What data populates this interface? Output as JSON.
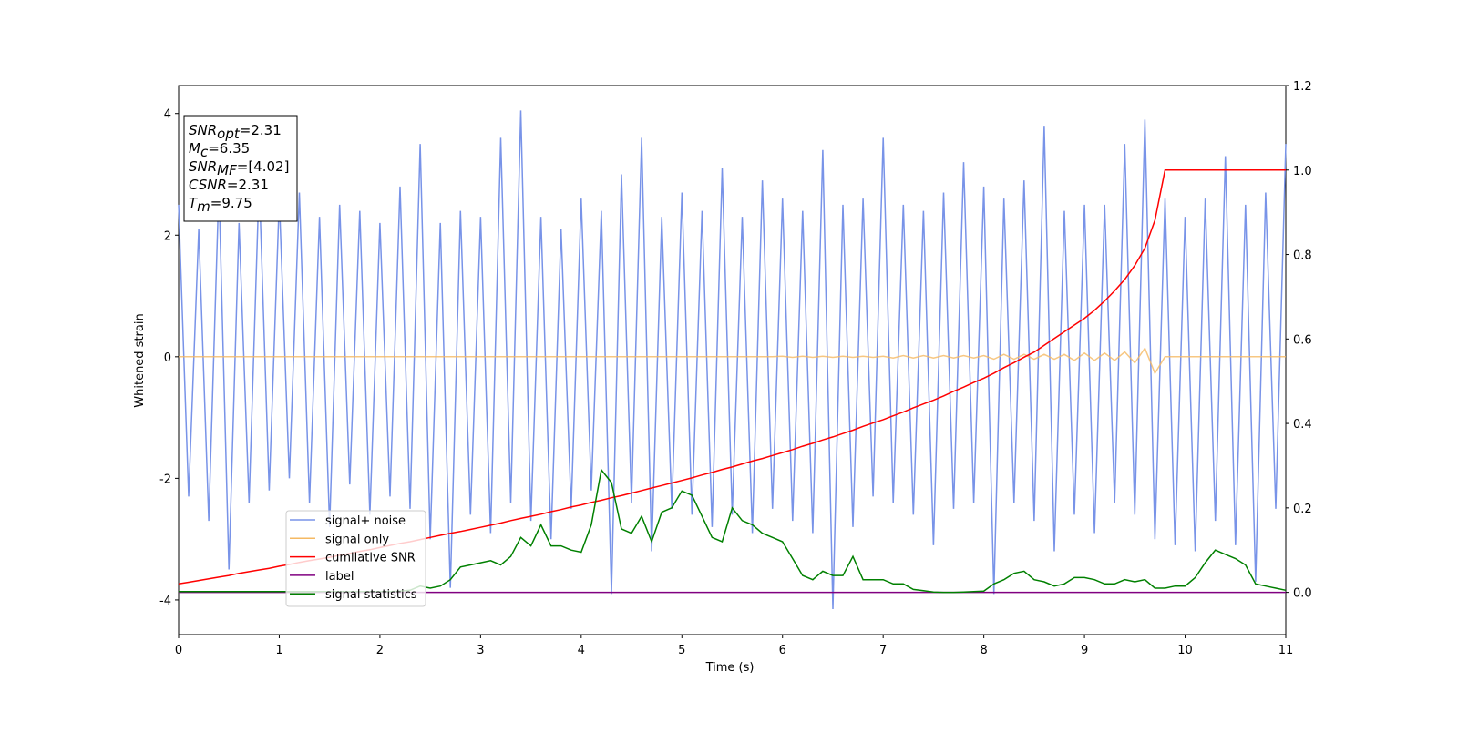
{
  "chart_data": {
    "type": "line",
    "xlabel": "Time (s)",
    "ylabel": "Whitened strain",
    "xlim": [
      0,
      11
    ],
    "xticks": [
      0,
      1,
      2,
      3,
      4,
      5,
      6,
      7,
      8,
      9,
      10,
      11
    ],
    "ylim": [
      -4.57,
      4.46
    ],
    "yticks": [
      -4,
      -2,
      0,
      2,
      4
    ],
    "y2lim": [
      -0.1,
      1.2
    ],
    "y2ticks": [
      {
        "value": 0,
        "label": "0.0"
      },
      0.2,
      0.4,
      0.6,
      0.8,
      {
        "value": 1,
        "label": "1.0"
      },
      1.2
    ],
    "annotation_lines": [
      {
        "symbol": "SNR",
        "sub": "opt",
        "text": "=2.31"
      },
      {
        "symbol": "M",
        "sub": "c",
        "text": "=6.35"
      },
      {
        "symbol": "SNR",
        "sub": "MF",
        "text": "=[4.02]"
      },
      {
        "symbol": "CSNR",
        "text": "=2.31"
      },
      {
        "symbol": "T",
        "sub": "m",
        "text": "=9.75"
      }
    ],
    "x": [
      0,
      0.1,
      0.2,
      0.3,
      0.4,
      0.5,
      0.6,
      0.7,
      0.8,
      0.9,
      1,
      1.1,
      1.2,
      1.3,
      1.4,
      1.5,
      1.6,
      1.7,
      1.8,
      1.9,
      2,
      2.1,
      2.2,
      2.3,
      2.4,
      2.5,
      2.6,
      2.7,
      2.8,
      2.9,
      3,
      3.1,
      3.2,
      3.3,
      3.4,
      3.5,
      3.6,
      3.7,
      3.8,
      3.9,
      4,
      4.1,
      4.2,
      4.3,
      4.4,
      4.5,
      4.6,
      4.7,
      4.8,
      4.9,
      5,
      5.1,
      5.2,
      5.3,
      5.4,
      5.5,
      5.6,
      5.7,
      5.8,
      5.9,
      6,
      6.1,
      6.2,
      6.3,
      6.4,
      6.5,
      6.6,
      6.7,
      6.8,
      6.9,
      7,
      7.1,
      7.2,
      7.3,
      7.4,
      7.5,
      7.6,
      7.7,
      7.8,
      7.9,
      8,
      8.1,
      8.2,
      8.3,
      8.4,
      8.5,
      8.6,
      8.7,
      8.8,
      8.9,
      9,
      9.1,
      9.2,
      9.3,
      9.4,
      9.5,
      9.6,
      9.7,
      9.8,
      9.9,
      10,
      10.1,
      10.2,
      10.3,
      10.4,
      10.5,
      10.6,
      10.7,
      10.8,
      10.9,
      11
    ],
    "series": [
      {
        "name": "signal+ noise",
        "color": "#7893e8",
        "values": [
          2.5,
          -2.3,
          2.1,
          -2.7,
          2.8,
          -3.5,
          2.2,
          -2.4,
          2.9,
          -2.2,
          2.6,
          -2.0,
          2.7,
          -2.4,
          2.3,
          -2.8,
          2.5,
          -2.1,
          2.4,
          -2.6,
          2.2,
          -2.3,
          2.8,
          -2.5,
          3.5,
          -3.0,
          2.2,
          -3.8,
          2.4,
          -2.6,
          2.3,
          -2.9,
          3.6,
          -2.4,
          4.05,
          -2.7,
          2.3,
          -3.0,
          2.1,
          -2.5,
          2.6,
          -2.2,
          2.4,
          -3.9,
          3.0,
          -2.4,
          3.6,
          -3.2,
          2.3,
          -2.5,
          2.7,
          -2.6,
          2.4,
          -2.8,
          3.1,
          -2.6,
          2.3,
          -2.9,
          2.9,
          -2.5,
          2.6,
          -2.7,
          2.4,
          -2.9,
          3.4,
          -4.15,
          2.5,
          -2.8,
          2.6,
          -2.3,
          3.6,
          -2.4,
          2.5,
          -2.6,
          2.4,
          -3.1,
          2.7,
          -2.5,
          3.2,
          -2.4,
          2.8,
          -3.9,
          2.6,
          -2.4,
          2.9,
          -2.7,
          3.8,
          -3.2,
          2.4,
          -2.6,
          2.5,
          -2.9,
          2.5,
          -2.4,
          3.5,
          -2.6,
          3.9,
          -3.0,
          2.6,
          -3.1,
          2.3,
          -3.2,
          2.6,
          -2.7,
          3.3,
          -3.1,
          2.5,
          -3.7,
          2.7,
          -2.5,
          3.5
        ]
      },
      {
        "name": "signal only",
        "color": "#f5b963",
        "values": [
          0,
          0,
          0,
          0,
          0,
          0,
          0,
          0,
          0,
          0,
          0,
          0,
          0,
          0,
          0,
          0,
          0,
          0,
          0,
          0,
          0,
          0,
          0,
          0,
          0,
          0,
          0,
          0,
          0,
          0,
          0,
          0,
          0,
          0,
          0,
          0,
          0,
          0,
          0,
          0,
          0,
          0,
          0,
          0,
          0,
          0,
          0,
          0,
          0,
          0,
          0,
          0,
          0,
          0,
          0,
          0,
          0,
          0,
          0,
          0,
          0.01,
          -0.01,
          0.01,
          -0.01,
          0.01,
          -0.01,
          0.01,
          -0.01,
          0.01,
          -0.01,
          0.01,
          -0.02,
          0.02,
          -0.02,
          0.02,
          -0.02,
          0.02,
          -0.02,
          0.02,
          -0.02,
          0.02,
          -0.04,
          0.04,
          -0.04,
          0.04,
          -0.04,
          0.04,
          -0.04,
          0.04,
          -0.06,
          0.06,
          -0.06,
          0.06,
          -0.06,
          0.08,
          -0.1,
          0.14,
          -0.27,
          0,
          0,
          0,
          0,
          0,
          0,
          0,
          0,
          0,
          0,
          0,
          0,
          0
        ]
      },
      {
        "name": "cumilative SNR",
        "color": "#ff0000",
        "axis": "y2",
        "values": [
          0.02,
          0.024,
          0.028,
          0.032,
          0.036,
          0.04,
          0.045,
          0.049,
          0.053,
          0.057,
          0.062,
          0.066,
          0.071,
          0.075,
          0.079,
          0.083,
          0.088,
          0.092,
          0.097,
          0.101,
          0.106,
          0.111,
          0.116,
          0.12,
          0.125,
          0.13,
          0.135,
          0.14,
          0.144,
          0.149,
          0.154,
          0.159,
          0.164,
          0.17,
          0.175,
          0.18,
          0.185,
          0.191,
          0.196,
          0.202,
          0.207,
          0.213,
          0.218,
          0.224,
          0.229,
          0.235,
          0.241,
          0.247,
          0.253,
          0.259,
          0.265,
          0.271,
          0.278,
          0.284,
          0.291,
          0.297,
          0.304,
          0.311,
          0.317,
          0.324,
          0.331,
          0.338,
          0.346,
          0.353,
          0.361,
          0.368,
          0.376,
          0.384,
          0.393,
          0.401,
          0.409,
          0.418,
          0.427,
          0.437,
          0.446,
          0.455,
          0.465,
          0.476,
          0.486,
          0.497,
          0.507,
          0.519,
          0.532,
          0.544,
          0.557,
          0.569,
          0.585,
          0.601,
          0.617,
          0.633,
          0.649,
          0.668,
          0.69,
          0.714,
          0.741,
          0.774,
          0.815,
          0.881,
          1,
          1,
          1,
          1,
          1,
          1,
          1,
          1,
          1,
          1,
          1,
          1,
          1
        ]
      },
      {
        "name": "label",
        "color": "#800080",
        "axis": "y2",
        "x": [
          0,
          11
        ],
        "values": [
          0,
          0
        ]
      },
      {
        "name": "signal statistics",
        "color": "#008000",
        "axis": "y2",
        "values": [
          0.002,
          0.002,
          0.002,
          0.002,
          0.002,
          0.002,
          0.002,
          0.002,
          0.002,
          0.002,
          0.002,
          0.002,
          0.002,
          0.002,
          0.002,
          0.002,
          0.002,
          0.002,
          0.002,
          0.002,
          0.002,
          0.002,
          0.003,
          0.005,
          0.015,
          0.01,
          0.015,
          0.03,
          0.06,
          0.065,
          0.07,
          0.075,
          0.065,
          0.085,
          0.13,
          0.11,
          0.16,
          0.11,
          0.11,
          0.1,
          0.095,
          0.16,
          0.29,
          0.26,
          0.15,
          0.14,
          0.18,
          0.12,
          0.19,
          0.2,
          0.24,
          0.23,
          0.18,
          0.13,
          0.12,
          0.2,
          0.17,
          0.16,
          0.14,
          0.13,
          0.12,
          0.08,
          0.04,
          0.03,
          0.05,
          0.04,
          0.04,
          0.085,
          0.03,
          0.03,
          0.03,
          0.02,
          0.02,
          0.007,
          0.004,
          0.001,
          0,
          0,
          0.001,
          0.002,
          0.003,
          0.02,
          0.03,
          0.045,
          0.05,
          0.03,
          0.025,
          0.015,
          0.02,
          0.035,
          0.035,
          0.03,
          0.02,
          0.02,
          0.03,
          0.025,
          0.03,
          0.01,
          0.01,
          0.015,
          0.015,
          0.035,
          0.07,
          0.1,
          0.09,
          0.08,
          0.065,
          0.02,
          0.015,
          0.01,
          0.005
        ]
      }
    ]
  }
}
